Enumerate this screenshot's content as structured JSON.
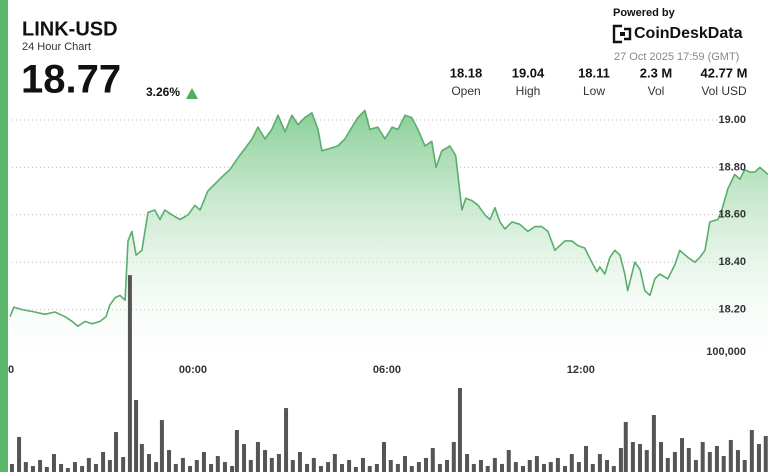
{
  "header": {
    "title": "LINK-USD",
    "subtitle": "24 Hour Chart",
    "price": "18.77",
    "change": "3.26%",
    "stats": [
      {
        "value": "18.18",
        "label": "Open"
      },
      {
        "value": "19.04",
        "label": "High"
      },
      {
        "value": "18.11",
        "label": "Low"
      },
      {
        "value": "2.3 M",
        "label": "Vol"
      },
      {
        "value": "42.77 M",
        "label": "Vol USD"
      }
    ],
    "powered_by": "Powered by",
    "brand": "CoinDeskData",
    "timestamp": "27 Oct 2025 17:59 (GMT)"
  },
  "chart_data": [
    {
      "type": "area",
      "color": "#5aae6c",
      "grid": true,
      "xlim": [
        -5.66,
        17.79
      ],
      "ylim": [
        18.0,
        19.08
      ],
      "xticks": [
        {
          "value": -6,
          "label": "0"
        },
        {
          "value": 0,
          "label": "00:00"
        },
        {
          "value": 6,
          "label": "06:00"
        },
        {
          "value": 12,
          "label": "12:00"
        }
      ],
      "yticks": [
        {
          "value": 18.2,
          "label": "18.20"
        },
        {
          "value": 18.4,
          "label": "18.40"
        },
        {
          "value": 18.6,
          "label": "18.60"
        },
        {
          "value": 18.8,
          "label": "18.80"
        },
        {
          "value": 19,
          "label": "19.00"
        }
      ],
      "x": [
        -5.66,
        -5.54,
        -5.29,
        -4.89,
        -4.58,
        -4.27,
        -3.96,
        -3.74,
        -3.56,
        -3.34,
        -3.12,
        -2.88,
        -2.69,
        -2.57,
        -2.41,
        -2.26,
        -2.1,
        -2.01,
        -1.89,
        -1.76,
        -1.58,
        -1.39,
        -1.18,
        -1.02,
        -0.87,
        -0.65,
        -0.4,
        -0.15,
        0.06,
        0.22,
        0.46,
        0.68,
        0.9,
        1.14,
        1.39,
        1.61,
        1.83,
        2.01,
        2.23,
        2.44,
        2.63,
        2.85,
        3.06,
        3.25,
        3.46,
        3.68,
        3.87,
        3.99,
        4.24,
        4.48,
        4.7,
        4.92,
        5.1,
        5.32,
        5.47,
        5.72,
        5.94,
        6.16,
        6.34,
        6.56,
        6.77,
        6.96,
        7.18,
        7.39,
        7.52,
        7.7,
        7.95,
        8.13,
        8.32,
        8.44,
        8.63,
        8.82,
        9.03,
        9.19,
        9.34,
        9.5,
        9.65,
        9.87,
        10.11,
        10.36,
        10.58,
        10.79,
        10.98,
        11.2,
        11.35,
        11.51,
        11.72,
        11.91,
        12.12,
        12.34,
        12.5,
        12.59,
        12.74,
        12.9,
        13.05,
        13.21,
        13.36,
        13.45,
        13.67,
        13.83,
        13.98,
        14.14,
        14.29,
        14.44,
        14.69,
        14.91,
        15.06,
        15.31,
        15.53,
        15.68,
        15.84,
        15.99,
        16.24,
        16.36,
        16.55,
        16.76,
        16.92,
        17.07,
        17.23,
        17.38,
        17.54,
        17.79
      ],
      "values": [
        18.17,
        18.21,
        18.2,
        18.19,
        18.18,
        18.19,
        18.17,
        18.15,
        18.13,
        18.15,
        18.14,
        18.15,
        18.17,
        18.22,
        18.25,
        18.26,
        18.24,
        18.49,
        18.53,
        18.43,
        18.45,
        18.61,
        18.62,
        18.58,
        18.62,
        18.6,
        18.58,
        18.6,
        18.64,
        18.62,
        18.7,
        18.73,
        18.76,
        18.79,
        18.84,
        18.88,
        18.92,
        18.97,
        18.92,
        18.96,
        19.02,
        18.95,
        19.02,
        18.98,
        19.01,
        19.03,
        18.96,
        18.87,
        18.88,
        18.89,
        18.92,
        18.97,
        19.01,
        19.04,
        18.96,
        18.97,
        18.92,
        18.97,
        18.96,
        19.02,
        19.01,
        18.96,
        18.89,
        18.91,
        18.8,
        18.87,
        18.89,
        18.85,
        18.62,
        18.67,
        18.66,
        18.64,
        18.6,
        18.58,
        18.63,
        18.57,
        18.54,
        18.57,
        18.56,
        18.53,
        18.55,
        18.55,
        18.53,
        18.45,
        18.47,
        18.49,
        18.49,
        18.47,
        18.46,
        18.4,
        18.36,
        18.38,
        18.35,
        18.42,
        18.45,
        18.43,
        18.35,
        18.28,
        18.4,
        18.37,
        18.28,
        18.26,
        18.33,
        18.35,
        18.33,
        18.39,
        18.45,
        18.42,
        18.4,
        18.42,
        18.45,
        18.57,
        18.58,
        18.62,
        18.71,
        18.77,
        18.75,
        18.79,
        18.78,
        18.78,
        18.8,
        18.77
      ]
    },
    {
      "type": "bar",
      "color": "#555555",
      "grid": false,
      "xlim": [
        -5.66,
        17.79
      ],
      "ylim": [
        0,
        166700
      ],
      "yticks": [
        {
          "value": 100000,
          "label": "100,000"
        }
      ],
      "x": [
        -5.6,
        -5.38,
        -5.17,
        -4.95,
        -4.73,
        -4.52,
        -4.3,
        -4.08,
        -3.87,
        -3.65,
        -3.43,
        -3.22,
        -3.0,
        -2.78,
        -2.57,
        -2.38,
        -2.16,
        -1.95,
        -1.76,
        -1.58,
        -1.36,
        -1.14,
        -0.96,
        -0.74,
        -0.53,
        -0.31,
        -0.09,
        0.12,
        0.34,
        0.56,
        0.77,
        0.99,
        1.21,
        1.36,
        1.58,
        1.79,
        2.01,
        2.23,
        2.44,
        2.66,
        2.88,
        3.09,
        3.31,
        3.53,
        3.74,
        3.96,
        4.18,
        4.39,
        4.61,
        4.83,
        5.04,
        5.26,
        5.47,
        5.69,
        5.91,
        6.12,
        6.34,
        6.56,
        6.77,
        6.99,
        7.21,
        7.42,
        7.64,
        7.86,
        8.07,
        8.26,
        8.48,
        8.69,
        8.91,
        9.12,
        9.34,
        9.56,
        9.77,
        9.99,
        10.21,
        10.42,
        10.64,
        10.86,
        11.07,
        11.29,
        11.51,
        11.72,
        11.94,
        12.16,
        12.37,
        12.59,
        12.81,
        13.02,
        13.24,
        13.39,
        13.61,
        13.83,
        14.04,
        14.26,
        14.48,
        14.69,
        14.91,
        15.13,
        15.34,
        15.56,
        15.77,
        15.99,
        16.21,
        16.42,
        16.64,
        16.86,
        17.07,
        17.29,
        17.51,
        17.72
      ],
      "values": [
        6700,
        29200,
        8300,
        5000,
        10000,
        4200,
        15000,
        6700,
        3300,
        8300,
        5000,
        11700,
        6700,
        16700,
        10000,
        33300,
        12500,
        164100,
        60000,
        23300,
        15000,
        8300,
        43300,
        18300,
        6700,
        11700,
        5000,
        10000,
        16700,
        6700,
        13300,
        8300,
        5000,
        35000,
        23300,
        10000,
        25000,
        18300,
        11700,
        15000,
        53300,
        10000,
        16700,
        6700,
        11700,
        5000,
        8300,
        15000,
        6700,
        10000,
        4200,
        11700,
        5000,
        6700,
        25000,
        10000,
        6700,
        13300,
        5000,
        8300,
        11700,
        20000,
        6700,
        10000,
        25000,
        70000,
        15000,
        6700,
        10000,
        5000,
        11700,
        6700,
        18300,
        8300,
        5000,
        10000,
        13300,
        6700,
        8300,
        11700,
        5000,
        15000,
        8300,
        21700,
        6700,
        15000,
        10000,
        5000,
        20000,
        41700,
        25000,
        23300,
        18300,
        47500,
        25000,
        11700,
        16700,
        28300,
        20000,
        10000,
        25000,
        16700,
        21700,
        13300,
        26700,
        18300,
        10000,
        35000,
        23300,
        30000
      ]
    }
  ]
}
